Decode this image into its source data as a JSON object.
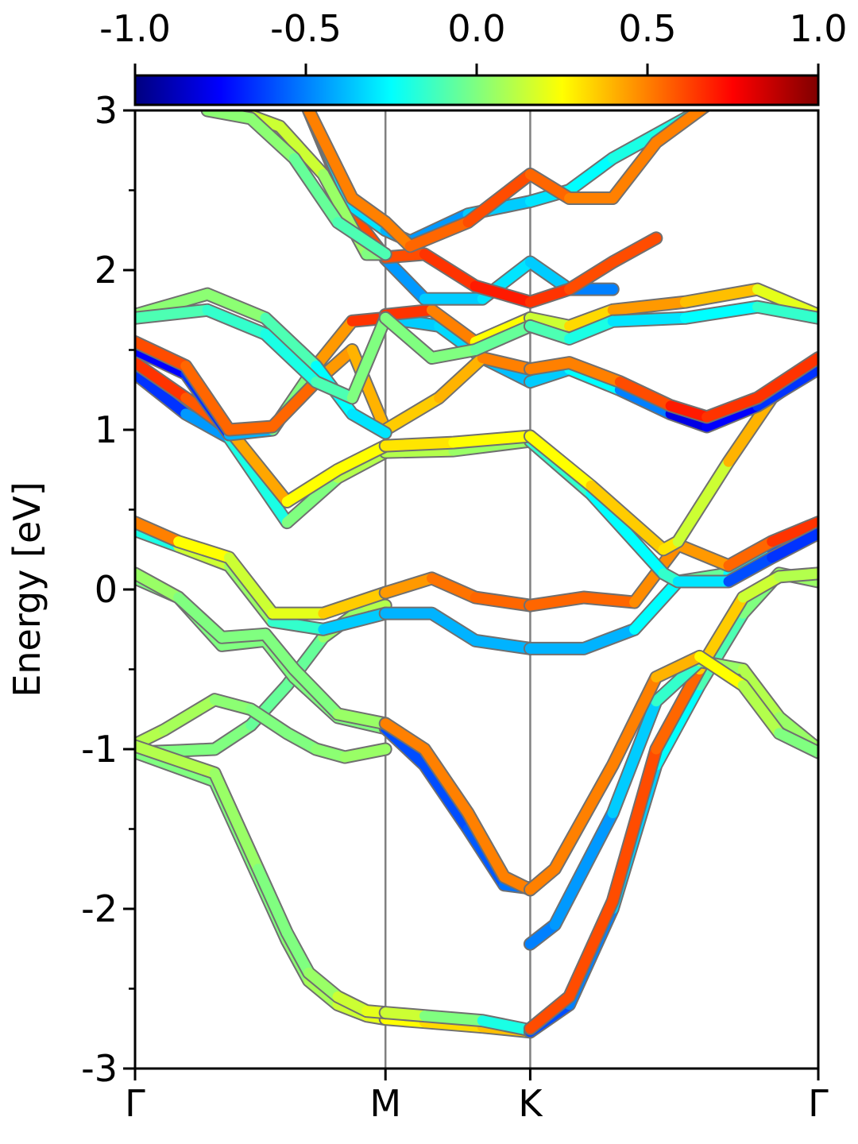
{
  "chart_data": {
    "type": "line",
    "ylabel": "Energy [eV]",
    "ylim": [
      -3,
      3
    ],
    "yticks": [
      -3,
      -2,
      -1,
      0,
      1,
      2,
      3
    ],
    "ytick_labels": [
      "-3",
      "-2",
      "-1",
      "0",
      "1",
      "2",
      "3"
    ],
    "yminor_ticks": [
      -2.5,
      -1.5,
      -0.5,
      0.5,
      1.5,
      2.5
    ],
    "xlim": [
      0,
      4.72
    ],
    "kpath_positions": [
      0,
      1.73,
      2.73,
      4.72
    ],
    "kpath_labels": [
      "Γ",
      "M",
      "K",
      "Γ"
    ],
    "colorbar": {
      "min": -1.0,
      "max": 1.0,
      "ticks": [
        -1.0,
        -0.5,
        0.0,
        0.5,
        1.0
      ],
      "tick_labels": [
        "-1.0",
        "-0.5",
        "0.0",
        "0.5",
        "1.0"
      ],
      "colormap": "jet"
    },
    "band_color_scale": "spin projection (color = value on colorbar)",
    "series": [
      {
        "x": [
          0,
          0.3,
          0.55,
          0.8,
          1.05,
          1.3,
          1.6,
          1.73
        ],
        "y": [
          -1.02,
          -1.01,
          -1.0,
          -0.85,
          -0.6,
          -0.3,
          -0.1,
          -0.1
        ],
        "c": [
          0.0,
          0.0,
          0.0,
          0.0,
          -0.1,
          0.0,
          0.1,
          0.1
        ]
      },
      {
        "x": [
          0,
          0.2,
          0.55,
          0.8,
          1.05,
          1.25,
          1.45,
          1.73
        ],
        "y": [
          -0.97,
          -0.88,
          -0.69,
          -0.75,
          -0.9,
          -1.0,
          -1.05,
          -1.0
        ],
        "c": [
          0.1,
          0.1,
          0.05,
          0.0,
          0.0,
          0.0,
          0.05,
          0.05
        ]
      },
      {
        "x": [
          0,
          0.55,
          0.85,
          1.05,
          1.2,
          1.4,
          1.6,
          1.73
        ],
        "y": [
          -1.02,
          -1.2,
          -1.8,
          -2.2,
          -2.45,
          -2.6,
          -2.67,
          -2.69
        ],
        "c": [
          0.0,
          0.0,
          0.0,
          0.0,
          0.05,
          0.1,
          0.2,
          0.2
        ]
      },
      {
        "x": [
          1.73,
          2.0,
          2.4,
          2.73
        ],
        "y": [
          -2.69,
          -2.71,
          -2.74,
          -2.77
        ],
        "c": [
          0.2,
          0.3,
          0.35,
          0.4
        ]
      },
      {
        "x": [
          0,
          0.55,
          0.85,
          1.05,
          1.2,
          1.4,
          1.6,
          1.73
        ],
        "y": [
          -0.98,
          -1.15,
          -1.75,
          -2.15,
          -2.4,
          -2.55,
          -2.64,
          -2.65
        ],
        "c": [
          0.1,
          0.1,
          0.0,
          0.0,
          0.0,
          0.1,
          0.2,
          0.2
        ]
      },
      {
        "x": [
          1.73,
          2.0,
          2.4,
          2.73
        ],
        "y": [
          -2.65,
          -2.67,
          -2.7,
          -2.76
        ],
        "c": [
          0.2,
          0.1,
          -0.1,
          -0.3
        ]
      },
      {
        "x": [
          2.73,
          3.0,
          3.3,
          3.6,
          3.9,
          4.2,
          4.45,
          4.72
        ],
        "y": [
          -2.77,
          -2.6,
          -2.0,
          -1.1,
          -0.6,
          -0.15,
          0.1,
          0.05
        ],
        "c": [
          -0.6,
          -0.6,
          -0.4,
          -0.3,
          -0.2,
          0.0,
          0.0,
          0.1
        ]
      },
      {
        "x": [
          2.73,
          3.0,
          3.3,
          3.6,
          3.9,
          4.2,
          4.45,
          4.72
        ],
        "y": [
          -2.75,
          -2.55,
          -1.95,
          -1.0,
          -0.5,
          -0.05,
          0.08,
          0.1
        ],
        "c": [
          0.6,
          0.6,
          0.6,
          0.6,
          0.5,
          0.2,
          0.1,
          0.1
        ]
      },
      {
        "x": [
          0,
          0.3,
          0.6,
          0.9,
          1.1,
          1.4,
          1.73
        ],
        "y": [
          0.07,
          -0.05,
          -0.35,
          -0.32,
          -0.55,
          -0.8,
          -0.87
        ],
        "c": [
          0.0,
          0.0,
          0.0,
          0.0,
          0.0,
          0.0,
          0.0
        ]
      },
      {
        "x": [
          1.73,
          2.0,
          2.3,
          2.55,
          2.73
        ],
        "y": [
          -0.87,
          -1.1,
          -1.5,
          -1.85,
          -1.87
        ],
        "c": [
          -0.6,
          -0.6,
          -0.6,
          -0.55,
          -0.5
        ]
      },
      {
        "x": [
          0,
          0.3,
          0.6,
          0.9,
          1.1,
          1.4,
          1.73
        ],
        "y": [
          0.1,
          -0.05,
          -0.3,
          -0.28,
          -0.5,
          -0.78,
          -0.84
        ],
        "c": [
          0.1,
          0.0,
          0.0,
          0.0,
          0.0,
          0.0,
          0.1
        ]
      },
      {
        "x": [
          1.73,
          2.0,
          2.3,
          2.55,
          2.73
        ],
        "y": [
          -0.84,
          -1.0,
          -1.4,
          -1.8,
          -1.88
        ],
        "c": [
          0.5,
          0.5,
          0.5,
          0.5,
          0.5
        ]
      },
      {
        "x": [
          2.73,
          2.9,
          3.3,
          3.6,
          3.9,
          4.2,
          4.45,
          4.72
        ],
        "y": [
          -2.22,
          -2.1,
          -1.4,
          -0.7,
          -0.45,
          -0.5,
          -0.8,
          -1.0
        ],
        "c": [
          -0.5,
          -0.5,
          -0.4,
          -0.3,
          0.0,
          0.1,
          0.1,
          0.0
        ]
      },
      {
        "x": [
          2.73,
          2.9,
          3.3,
          3.6,
          3.9,
          4.2,
          4.45,
          4.72
        ],
        "y": [
          -1.88,
          -1.75,
          -1.1,
          -0.55,
          -0.42,
          -0.6,
          -0.9,
          -1.02
        ],
        "c": [
          0.5,
          0.5,
          0.5,
          0.5,
          0.3,
          0.2,
          0.0,
          0.0
        ]
      },
      {
        "x": [
          0,
          0.3,
          0.65,
          0.95,
          1.3,
          1.73
        ],
        "y": [
          0.37,
          0.27,
          0.15,
          -0.2,
          -0.25,
          -0.15
        ],
        "c": [
          -0.6,
          0.2,
          0.1,
          0.0,
          -0.3,
          -0.4
        ]
      },
      {
        "x": [
          1.73,
          2.05,
          2.35,
          2.73
        ],
        "y": [
          -0.15,
          -0.15,
          -0.32,
          -0.37
        ],
        "c": [
          -0.4,
          -0.4,
          -0.4,
          -0.4
        ]
      },
      {
        "x": [
          2.73,
          3.1,
          3.45,
          3.75,
          4.1,
          4.4,
          4.72
        ],
        "y": [
          -0.37,
          -0.37,
          -0.25,
          0.05,
          0.1,
          0.25,
          0.37
        ],
        "c": [
          -0.4,
          -0.4,
          -0.4,
          -0.1,
          0.0,
          -0.5,
          -0.7
        ]
      },
      {
        "x": [
          0,
          0.3,
          0.65,
          0.95,
          1.3,
          1.73
        ],
        "y": [
          0.42,
          0.3,
          0.2,
          -0.15,
          -0.15,
          -0.02
        ],
        "c": [
          0.7,
          0.3,
          0.2,
          0.1,
          0.3,
          0.4
        ]
      },
      {
        "x": [
          1.73,
          2.05,
          2.35,
          2.73
        ],
        "y": [
          -0.02,
          0.07,
          -0.05,
          -0.1
        ],
        "c": [
          0.4,
          0.5,
          0.55,
          0.55
        ]
      },
      {
        "x": [
          2.73,
          3.1,
          3.45,
          3.75,
          4.1,
          4.4,
          4.72
        ],
        "y": [
          -0.1,
          -0.05,
          -0.08,
          0.28,
          0.15,
          0.3,
          0.42
        ],
        "c": [
          0.55,
          0.55,
          0.55,
          0.4,
          0.5,
          0.6,
          0.7
        ]
      },
      {
        "x": [
          0,
          0.35,
          0.65,
          1.05,
          1.4,
          1.73
        ],
        "y": [
          1.35,
          1.1,
          0.95,
          0.42,
          0.7,
          0.86
        ],
        "c": [
          -0.7,
          -0.6,
          -0.3,
          -0.1,
          0.1,
          0.1
        ]
      },
      {
        "x": [
          1.73,
          2.2,
          2.73
        ],
        "y": [
          0.86,
          0.87,
          0.93
        ],
        "c": [
          0.1,
          0.1,
          0.0
        ]
      },
      {
        "x": [
          2.73,
          3.15,
          3.65,
          3.75,
          4.1,
          4.4,
          4.72
        ],
        "y": [
          0.93,
          0.6,
          0.1,
          0.05,
          0.05,
          0.2,
          0.35
        ],
        "c": [
          -0.1,
          -0.2,
          -0.3,
          0.0,
          -0.6,
          -0.6,
          -0.7
        ]
      },
      {
        "x": [
          0,
          0.35,
          0.65,
          1.05,
          1.4,
          1.73
        ],
        "y": [
          1.42,
          1.2,
          1.0,
          0.55,
          0.75,
          0.9
        ],
        "c": [
          0.7,
          0.6,
          0.55,
          0.3,
          0.2,
          0.3
        ]
      },
      {
        "x": [
          1.73,
          2.2,
          2.73
        ],
        "y": [
          0.9,
          0.92,
          0.96
        ],
        "c": [
          0.3,
          0.3,
          0.2
        ]
      },
      {
        "x": [
          2.73,
          3.15,
          3.65,
          3.75,
          4.1,
          4.4,
          4.72
        ],
        "y": [
          0.96,
          0.65,
          0.25,
          0.3,
          0.8,
          1.2,
          1.4
        ],
        "c": [
          0.2,
          0.3,
          0.4,
          0.2,
          0.1,
          0.7,
          0.8
        ]
      },
      {
        "x": [
          0,
          0.35,
          0.65,
          0.95,
          1.25,
          1.5,
          1.73
        ],
        "y": [
          1.5,
          1.35,
          0.97,
          1.0,
          1.4,
          1.68,
          1.7
        ],
        "c": [
          -0.7,
          -0.8,
          -0.5,
          -0.3,
          0.3,
          0.6,
          0.7
        ]
      },
      {
        "x": [
          1.73,
          2.1,
          2.4,
          2.73
        ],
        "y": [
          1.7,
          1.65,
          1.45,
          1.3
        ],
        "c": [
          -0.4,
          -0.3,
          -0.35,
          -0.4
        ]
      },
      {
        "x": [
          2.73,
          3.0,
          3.35,
          3.7,
          3.95,
          4.3,
          4.72
        ],
        "y": [
          1.3,
          1.38,
          1.25,
          1.1,
          1.02,
          1.15,
          1.38
        ],
        "c": [
          -0.4,
          -0.3,
          -0.2,
          -0.8,
          -0.8,
          -0.7,
          -0.6
        ]
      },
      {
        "x": [
          0,
          0.35,
          0.65,
          0.95,
          1.25,
          1.5,
          1.73
        ],
        "y": [
          1.55,
          1.4,
          1.0,
          1.02,
          1.3,
          1.5,
          1.0
        ],
        "c": [
          0.6,
          0.6,
          0.5,
          0.6,
          0.5,
          0.4,
          0.4
        ]
      },
      {
        "x": [
          1.73,
          2.1,
          2.4,
          2.73
        ],
        "y": [
          1.0,
          1.2,
          1.45,
          1.38
        ],
        "c": [
          0.4,
          0.3,
          0.5,
          0.5
        ]
      },
      {
        "x": [
          2.73,
          3.0,
          3.35,
          3.7,
          3.95,
          4.3,
          4.72
        ],
        "y": [
          1.38,
          1.42,
          1.3,
          1.15,
          1.08,
          1.2,
          1.45
        ],
        "c": [
          0.5,
          0.5,
          0.5,
          0.7,
          0.7,
          0.6,
          0.7
        ]
      },
      {
        "x": [
          0,
          0.5,
          0.9,
          1.25,
          1.5,
          1.73
        ],
        "y": [
          1.72,
          1.85,
          1.7,
          1.4,
          1.1,
          0.98
        ],
        "c": [
          0.0,
          0.05,
          0.0,
          -0.2,
          -0.3,
          -0.3
        ]
      },
      {
        "x": [
          1.73,
          2.05,
          2.35,
          2.73
        ],
        "y": [
          1.72,
          1.75,
          1.55,
          1.7
        ],
        "c": [
          0.7,
          0.6,
          0.4,
          0.1
        ]
      },
      {
        "x": [
          2.73,
          3.0,
          3.3,
          3.8,
          4.3,
          4.72
        ],
        "y": [
          1.7,
          1.65,
          1.75,
          1.8,
          1.88,
          1.72
        ],
        "c": [
          0.1,
          0.2,
          0.45,
          0.45,
          0.3,
          0.1
        ]
      },
      {
        "x": [
          0,
          0.5,
          0.9,
          1.25,
          1.5,
          1.73
        ],
        "y": [
          1.7,
          1.75,
          1.6,
          1.3,
          1.2,
          1.7
        ],
        "c": [
          -0.1,
          -0.1,
          -0.2,
          -0.2,
          0.0,
          0.0
        ]
      },
      {
        "x": [
          1.73,
          2.05,
          2.35,
          2.73
        ],
        "y": [
          1.7,
          1.45,
          1.5,
          1.65
        ],
        "c": [
          0.0,
          0.0,
          0.0,
          -0.1
        ]
      },
      {
        "x": [
          2.73,
          3.0,
          3.3,
          3.8,
          4.3,
          4.72
        ],
        "y": [
          1.65,
          1.57,
          1.68,
          1.7,
          1.77,
          1.7
        ],
        "c": [
          -0.1,
          -0.1,
          -0.3,
          -0.3,
          -0.2,
          -0.1
        ]
      },
      {
        "x": [
          1.73,
          2.0,
          2.4,
          2.73,
          3.0,
          3.3
        ],
        "y": [
          2.07,
          1.82,
          1.82,
          2.05,
          1.88,
          1.88
        ],
        "c": [
          -0.5,
          -0.4,
          -0.3,
          -0.3,
          -0.4,
          -0.6
        ]
      },
      {
        "x": [
          1.2,
          1.5,
          1.73,
          2.0,
          2.35,
          2.73,
          3.0,
          3.3,
          3.6
        ],
        "y": [
          3.0,
          2.35,
          2.08,
          2.1,
          1.9,
          1.8,
          1.88,
          2.05,
          2.2
        ],
        "c": [
          0.6,
          0.6,
          0.6,
          0.6,
          0.7,
          0.7,
          0.6,
          0.6,
          0.6
        ]
      },
      {
        "x": [
          1.2,
          1.5,
          1.73,
          1.9,
          2.3,
          2.73,
          3.0,
          3.3,
          3.6,
          3.9,
          4.2
        ],
        "y": [
          3.0,
          2.4,
          2.25,
          2.18,
          2.35,
          2.43,
          2.5,
          2.7,
          2.85,
          3.0,
          3.2
        ],
        "c": [
          -0.3,
          -0.3,
          -0.3,
          -0.5,
          -0.4,
          -0.3,
          -0.3,
          -0.2,
          -0.2,
          -0.2,
          -0.2
        ]
      },
      {
        "x": [
          1.2,
          1.5,
          1.73,
          1.9,
          2.3,
          2.73,
          3.0,
          3.3,
          3.6,
          3.9,
          4.2
        ],
        "y": [
          3.0,
          2.45,
          2.3,
          2.15,
          2.3,
          2.6,
          2.45,
          2.45,
          2.8,
          3.0,
          3.2
        ],
        "c": [
          0.5,
          0.5,
          0.5,
          0.5,
          0.6,
          0.6,
          0.5,
          0.5,
          0.5,
          0.5,
          0.5
        ]
      },
      {
        "x": [
          0.7,
          1.0,
          1.3,
          1.6,
          1.73
        ],
        "y": [
          3.0,
          2.9,
          2.6,
          2.1,
          2.1
        ],
        "c": [
          0.1,
          0.2,
          0.1,
          0.0,
          0.0
        ]
      },
      {
        "x": [
          0.5,
          0.8,
          1.1,
          1.4,
          1.73
        ],
        "y": [
          3.0,
          2.95,
          2.7,
          2.3,
          2.1
        ],
        "c": [
          0.0,
          0.05,
          0.0,
          -0.1,
          -0.1
        ]
      }
    ]
  }
}
